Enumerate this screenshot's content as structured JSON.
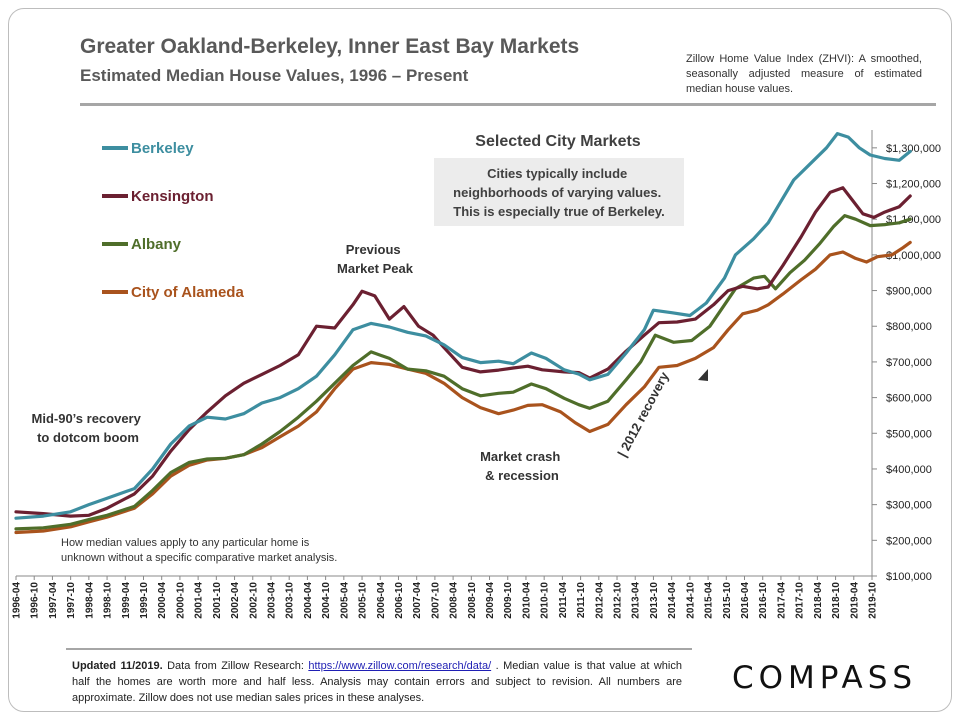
{
  "header": {
    "title": "Greater Oakland-Berkeley, Inner East Bay Markets",
    "subtitle": "Estimated Median House Values, 1996 – Present",
    "zhvi_note": "Zillow Home Value Index (ZHVI): A smoothed, seasonally adjusted measure of estimated median house values."
  },
  "footer": {
    "updated": "Updated 11/2019.",
    "text_before_link": " Data from Zillow Research: ",
    "link_text": "https://www.zillow.com/research/data/",
    "text_after_link": " . Median value is that value at which half the homes are worth more and half less. Analysis may contain errors and subject to revision. All numbers are approximate. Zillow does not use median sales prices in these analyses."
  },
  "brand": {
    "logo_text": "COMPASS"
  },
  "colors": {
    "berkeley": "#3d8ea0",
    "kensington": "#6b2031",
    "albany": "#4f6e2a",
    "alameda": "#a9531d",
    "annotation_box": "#ececec",
    "text_gray": "#595959",
    "text_dark": "#333333"
  },
  "chart_data": {
    "type": "line",
    "title": "Selected City Markets",
    "xlabel": "",
    "ylabel": "",
    "ylim": [
      100000,
      1350000
    ],
    "grid": false,
    "legend_placement": "top-left",
    "y_ticks": [
      100000,
      200000,
      300000,
      400000,
      500000,
      600000,
      700000,
      800000,
      900000,
      1000000,
      1100000,
      1200000,
      1300000
    ],
    "y_tick_labels": [
      "$100,000",
      "$200,000",
      "$300,000",
      "$400,000",
      "$500,000",
      "$600,000",
      "$700,000",
      "$800,000",
      "$900,000",
      "$1,000,000",
      "$1,100,000",
      "$1,200,000",
      "$1,300,000"
    ],
    "x_tick_labels": [
      "1996-04",
      "1996-10",
      "1997-04",
      "1997-10",
      "1998-04",
      "1998-10",
      "1999-04",
      "1999-10",
      "2000-04",
      "2000-10",
      "2001-04",
      "2001-10",
      "2002-04",
      "2002-10",
      "2003-04",
      "2003-10",
      "2004-04",
      "2004-10",
      "2005-04",
      "2005-10",
      "2006-04",
      "2006-10",
      "2007-04",
      "2007-10",
      "2008-04",
      "2008-10",
      "2009-04",
      "2009-10",
      "2010-04",
      "2010-10",
      "2011-04",
      "2011-10",
      "2012-04",
      "2012-10",
      "2013-04",
      "2013-10",
      "2014-04",
      "2014-10",
      "2015-04",
      "2015-10",
      "2016-04",
      "2016-10",
      "2017-04",
      "2017-10",
      "2018-04",
      "2018-10",
      "2019-04",
      "2019-10"
    ],
    "series": [
      {
        "name": "Berkeley",
        "color_key": "berkeley",
        "values": [
          [
            1996.25,
            262000
          ],
          [
            1997.0,
            268000
          ],
          [
            1997.75,
            280000
          ],
          [
            1998.25,
            300000
          ],
          [
            1998.75,
            318000
          ],
          [
            1999.5,
            345000
          ],
          [
            2000.0,
            400000
          ],
          [
            2000.5,
            470000
          ],
          [
            2001.0,
            520000
          ],
          [
            2001.5,
            545000
          ],
          [
            2002.0,
            540000
          ],
          [
            2002.5,
            555000
          ],
          [
            2003.0,
            585000
          ],
          [
            2003.5,
            600000
          ],
          [
            2004.0,
            625000
          ],
          [
            2004.5,
            660000
          ],
          [
            2005.0,
            720000
          ],
          [
            2005.5,
            790000
          ],
          [
            2006.0,
            808000
          ],
          [
            2006.5,
            798000
          ],
          [
            2007.0,
            783000
          ],
          [
            2007.5,
            773000
          ],
          [
            2008.0,
            748000
          ],
          [
            2008.5,
            712000
          ],
          [
            2009.0,
            698000
          ],
          [
            2009.5,
            702000
          ],
          [
            2009.9,
            695000
          ],
          [
            2010.4,
            725000
          ],
          [
            2010.8,
            710000
          ],
          [
            2011.3,
            678000
          ],
          [
            2011.7,
            666000
          ],
          [
            2012.0,
            650000
          ],
          [
            2012.5,
            665000
          ],
          [
            2013.0,
            725000
          ],
          [
            2013.5,
            790000
          ],
          [
            2013.75,
            845000
          ],
          [
            2014.25,
            838000
          ],
          [
            2014.75,
            830000
          ],
          [
            2015.2,
            865000
          ],
          [
            2015.7,
            935000
          ],
          [
            2016.0,
            1000000
          ],
          [
            2016.5,
            1045000
          ],
          [
            2016.9,
            1090000
          ],
          [
            2017.25,
            1150000
          ],
          [
            2017.6,
            1210000
          ],
          [
            2018.0,
            1250000
          ],
          [
            2018.5,
            1300000
          ],
          [
            2018.8,
            1340000
          ],
          [
            2019.1,
            1330000
          ],
          [
            2019.4,
            1300000
          ],
          [
            2019.7,
            1280000
          ],
          [
            2020.1,
            1270000
          ],
          [
            2020.5,
            1265000
          ],
          [
            2020.8,
            1290000
          ]
        ]
      },
      {
        "name": "Kensington",
        "color_key": "kensington",
        "values": [
          [
            1996.25,
            280000
          ],
          [
            1997.0,
            275000
          ],
          [
            1997.75,
            268000
          ],
          [
            1998.25,
            270000
          ],
          [
            1998.75,
            290000
          ],
          [
            1999.5,
            330000
          ],
          [
            2000.0,
            380000
          ],
          [
            2000.5,
            450000
          ],
          [
            2001.0,
            510000
          ],
          [
            2001.5,
            560000
          ],
          [
            2002.0,
            605000
          ],
          [
            2002.5,
            640000
          ],
          [
            2003.0,
            665000
          ],
          [
            2003.5,
            690000
          ],
          [
            2004.0,
            720000
          ],
          [
            2004.5,
            800000
          ],
          [
            2005.0,
            795000
          ],
          [
            2005.5,
            860000
          ],
          [
            2005.75,
            898000
          ],
          [
            2006.1,
            885000
          ],
          [
            2006.5,
            820000
          ],
          [
            2006.9,
            855000
          ],
          [
            2007.3,
            800000
          ],
          [
            2007.7,
            775000
          ],
          [
            2008.0,
            740000
          ],
          [
            2008.5,
            685000
          ],
          [
            2009.0,
            672000
          ],
          [
            2009.5,
            677000
          ],
          [
            2009.9,
            683000
          ],
          [
            2010.3,
            688000
          ],
          [
            2010.7,
            678000
          ],
          [
            2011.3,
            672000
          ],
          [
            2011.7,
            670000
          ],
          [
            2012.0,
            655000
          ],
          [
            2012.5,
            680000
          ],
          [
            2013.0,
            730000
          ],
          [
            2013.5,
            775000
          ],
          [
            2013.9,
            810000
          ],
          [
            2014.4,
            812000
          ],
          [
            2014.9,
            820000
          ],
          [
            2015.4,
            860000
          ],
          [
            2015.8,
            900000
          ],
          [
            2016.2,
            912000
          ],
          [
            2016.6,
            905000
          ],
          [
            2016.9,
            910000
          ],
          [
            2017.3,
            970000
          ],
          [
            2017.8,
            1050000
          ],
          [
            2018.2,
            1120000
          ],
          [
            2018.6,
            1175000
          ],
          [
            2018.95,
            1188000
          ],
          [
            2019.2,
            1155000
          ],
          [
            2019.5,
            1115000
          ],
          [
            2019.8,
            1105000
          ],
          [
            2020.1,
            1120000
          ],
          [
            2020.5,
            1135000
          ],
          [
            2020.8,
            1165000
          ]
        ]
      },
      {
        "name": "Albany",
        "color_key": "albany",
        "values": [
          [
            1996.25,
            232000
          ],
          [
            1997.0,
            235000
          ],
          [
            1997.75,
            245000
          ],
          [
            1998.25,
            258000
          ],
          [
            1998.75,
            270000
          ],
          [
            1999.5,
            295000
          ],
          [
            2000.0,
            340000
          ],
          [
            2000.5,
            390000
          ],
          [
            2001.0,
            418000
          ],
          [
            2001.5,
            428000
          ],
          [
            2002.0,
            430000
          ],
          [
            2002.5,
            440000
          ],
          [
            2003.0,
            470000
          ],
          [
            2003.5,
            505000
          ],
          [
            2004.0,
            545000
          ],
          [
            2004.5,
            590000
          ],
          [
            2005.0,
            640000
          ],
          [
            2005.5,
            690000
          ],
          [
            2006.0,
            728000
          ],
          [
            2006.5,
            710000
          ],
          [
            2007.0,
            680000
          ],
          [
            2007.5,
            675000
          ],
          [
            2008.0,
            660000
          ],
          [
            2008.5,
            625000
          ],
          [
            2009.0,
            605000
          ],
          [
            2009.5,
            612000
          ],
          [
            2009.9,
            615000
          ],
          [
            2010.4,
            638000
          ],
          [
            2010.8,
            625000
          ],
          [
            2011.3,
            598000
          ],
          [
            2011.7,
            580000
          ],
          [
            2012.0,
            570000
          ],
          [
            2012.5,
            590000
          ],
          [
            2013.0,
            650000
          ],
          [
            2013.4,
            700000
          ],
          [
            2013.8,
            775000
          ],
          [
            2014.3,
            755000
          ],
          [
            2014.8,
            760000
          ],
          [
            2015.3,
            800000
          ],
          [
            2015.7,
            860000
          ],
          [
            2016.0,
            905000
          ],
          [
            2016.5,
            935000
          ],
          [
            2016.8,
            940000
          ],
          [
            2017.1,
            905000
          ],
          [
            2017.5,
            950000
          ],
          [
            2017.9,
            985000
          ],
          [
            2018.3,
            1030000
          ],
          [
            2018.7,
            1080000
          ],
          [
            2019.0,
            1110000
          ],
          [
            2019.3,
            1100000
          ],
          [
            2019.7,
            1082000
          ],
          [
            2020.1,
            1085000
          ],
          [
            2020.5,
            1090000
          ],
          [
            2020.8,
            1100000
          ]
        ]
      },
      {
        "name": "City of Alameda",
        "color_key": "alameda",
        "values": [
          [
            1996.25,
            222000
          ],
          [
            1997.0,
            226000
          ],
          [
            1997.75,
            238000
          ],
          [
            1998.25,
            252000
          ],
          [
            1998.75,
            265000
          ],
          [
            1999.5,
            290000
          ],
          [
            2000.0,
            330000
          ],
          [
            2000.5,
            380000
          ],
          [
            2001.0,
            410000
          ],
          [
            2001.5,
            425000
          ],
          [
            2002.0,
            430000
          ],
          [
            2002.5,
            440000
          ],
          [
            2003.0,
            460000
          ],
          [
            2003.5,
            490000
          ],
          [
            2004.0,
            520000
          ],
          [
            2004.5,
            560000
          ],
          [
            2005.0,
            625000
          ],
          [
            2005.5,
            680000
          ],
          [
            2006.0,
            698000
          ],
          [
            2006.5,
            693000
          ],
          [
            2007.0,
            680000
          ],
          [
            2007.5,
            668000
          ],
          [
            2008.0,
            640000
          ],
          [
            2008.5,
            600000
          ],
          [
            2009.0,
            572000
          ],
          [
            2009.5,
            555000
          ],
          [
            2009.9,
            565000
          ],
          [
            2010.3,
            578000
          ],
          [
            2010.7,
            580000
          ],
          [
            2011.2,
            560000
          ],
          [
            2011.6,
            530000
          ],
          [
            2012.0,
            505000
          ],
          [
            2012.5,
            525000
          ],
          [
            2013.0,
            580000
          ],
          [
            2013.5,
            630000
          ],
          [
            2013.9,
            685000
          ],
          [
            2014.4,
            690000
          ],
          [
            2014.9,
            710000
          ],
          [
            2015.4,
            740000
          ],
          [
            2015.8,
            790000
          ],
          [
            2016.2,
            835000
          ],
          [
            2016.6,
            845000
          ],
          [
            2016.9,
            860000
          ],
          [
            2017.3,
            890000
          ],
          [
            2017.8,
            930000
          ],
          [
            2018.2,
            960000
          ],
          [
            2018.6,
            1000000
          ],
          [
            2018.95,
            1008000
          ],
          [
            2019.3,
            990000
          ],
          [
            2019.6,
            980000
          ],
          [
            2019.9,
            995000
          ],
          [
            2020.3,
            1000000
          ],
          [
            2020.6,
            1020000
          ],
          [
            2020.8,
            1035000
          ]
        ]
      }
    ],
    "annotations": {
      "subtitle_box": "Cities typically include neighborhoods of varying values. This is especially true of Berkeley.",
      "previous_peak": [
        "Previous",
        "Market Peak"
      ],
      "mid90s": [
        "Mid-90’s recovery",
        "to dotcom boom"
      ],
      "market_crash": [
        "Market crash",
        "& recession"
      ],
      "recovery_2012": "| 2012 recovery",
      "disclaimer": [
        "How median values apply to any particular home is",
        "unknown without a specific comparative market analysis."
      ]
    }
  }
}
